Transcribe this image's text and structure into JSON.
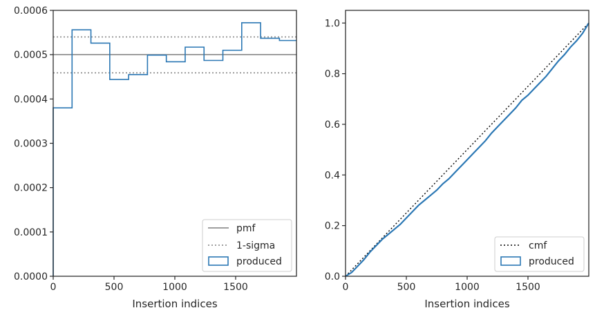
{
  "chart_data": [
    {
      "type": "histogram",
      "xlabel": "Insertion indices",
      "ylabel": "",
      "xlim": [
        0,
        2000
      ],
      "ylim": [
        0,
        0.0006
      ],
      "xticks": [
        "0",
        "500",
        "1000",
        "1500"
      ],
      "yticks": [
        "0.0000",
        "0.0001",
        "0.0002",
        "0.0003",
        "0.0004",
        "0.0005",
        "0.0006"
      ],
      "grid": false,
      "legend_position": "lower-right",
      "lines": [
        {
          "name": "pmf",
          "value": 0.0005,
          "style": "solid",
          "color": "#7f7f7f"
        },
        {
          "name": "1-sigma",
          "values": [
            0.00054,
            0.000459
          ],
          "style": "dotted",
          "color": "#7f7f7f"
        }
      ],
      "series": [
        {
          "name": "produced",
          "color": "#2a77b4",
          "bin_edges": [
            0,
            155,
            310,
            465,
            620,
            775,
            930,
            1085,
            1240,
            1395,
            1550,
            1705,
            1860,
            2000
          ],
          "values": [
            0.00038,
            0.000556,
            0.000526,
            0.000444,
            0.000455,
            0.000499,
            0.000484,
            0.000517,
            0.000487,
            0.00051,
            0.000572,
            0.000537,
            0.000532
          ]
        }
      ]
    },
    {
      "type": "line",
      "xlabel": "Insertion indices",
      "ylabel": "",
      "xlim": [
        0,
        2000
      ],
      "ylim": [
        0,
        1.05
      ],
      "xticks": [
        "0",
        "500",
        "1000",
        "1500"
      ],
      "yticks": [
        "0.0",
        "0.2",
        "0.4",
        "0.6",
        "0.8",
        "1.0"
      ],
      "grid": false,
      "legend_position": "lower-right",
      "series": [
        {
          "name": "cmf",
          "style": "dotted",
          "color": "#000000",
          "x": [
            0,
            2000
          ],
          "y": [
            0,
            1.0
          ]
        },
        {
          "name": "produced",
          "style": "solid",
          "color": "#2a77b4",
          "x": [
            0,
            50,
            100,
            150,
            200,
            250,
            300,
            350,
            400,
            450,
            500,
            550,
            600,
            650,
            700,
            750,
            800,
            850,
            900,
            950,
            1000,
            1050,
            1100,
            1150,
            1200,
            1250,
            1300,
            1350,
            1400,
            1450,
            1500,
            1550,
            1600,
            1650,
            1700,
            1750,
            1800,
            1850,
            1900,
            1950,
            2000
          ],
          "y": [
            0,
            0.015,
            0.04,
            0.065,
            0.095,
            0.12,
            0.145,
            0.165,
            0.185,
            0.205,
            0.23,
            0.255,
            0.28,
            0.3,
            0.32,
            0.34,
            0.365,
            0.385,
            0.41,
            0.435,
            0.46,
            0.485,
            0.51,
            0.535,
            0.565,
            0.59,
            0.615,
            0.64,
            0.665,
            0.695,
            0.715,
            0.74,
            0.765,
            0.79,
            0.82,
            0.85,
            0.875,
            0.905,
            0.93,
            0.96,
            1.0
          ]
        }
      ]
    }
  ]
}
